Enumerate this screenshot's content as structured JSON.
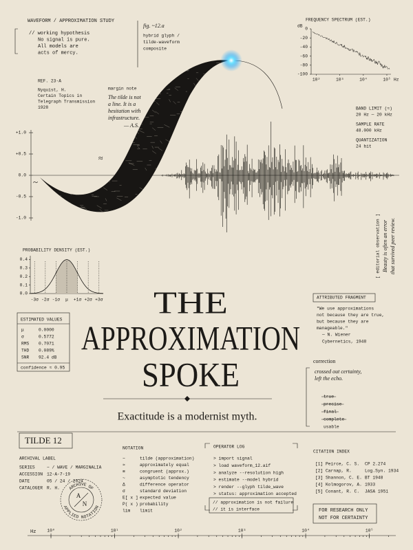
{
  "header": {
    "label": "WAVEFORM / APPROXIMATION STUDY",
    "hypothesis": [
      "// working hypothesis",
      "No signal is pure.",
      "All models are",
      "acts of mercy."
    ]
  },
  "reference": {
    "id": "REF.  23-A",
    "lines": [
      "Nyquist, H.",
      "Certain Topics in",
      "Telegraph Transmission",
      "1928"
    ]
  },
  "figure": {
    "caption": "fig. ~12.a",
    "lines": [
      "hybrid glyph /",
      "tilde-waveform",
      "composite"
    ]
  },
  "margin_note": {
    "label": "margin note",
    "lines": [
      "The tilde is not",
      "a line. It is a",
      "hesitation with",
      "infrastructure."
    ],
    "author": "— A.S."
  },
  "spectrum": {
    "title": "FREQUENCY SPECTRUM (EST.)",
    "y_label": "dB",
    "x_unit": "Hz",
    "ylim": [
      -100,
      0
    ],
    "yticks": [
      0,
      -20,
      -40,
      -60,
      -80,
      -100
    ],
    "xlim": [
      60,
      150000
    ],
    "xticks": [
      {
        "value": 100,
        "label": "10²"
      },
      {
        "value": 1000,
        "label": "10³"
      },
      {
        "value": 10000,
        "label": "10⁴"
      },
      {
        "value": 100000,
        "label": "10⁵"
      }
    ]
  },
  "specs": [
    {
      "label": "BAND LIMIT (≈)",
      "value": "20 Hz — 20 kHz"
    },
    {
      "label": "SAMPLE RATE",
      "value": "48.000 kHz"
    },
    {
      "label": "QUANTIZATION",
      "value": "24 bit"
    }
  ],
  "waveform": {
    "ylim": [
      -1,
      1
    ],
    "yticks": [
      {
        "value": 1,
        "label": "+1.0"
      },
      {
        "value": 0.5,
        "label": "+0.5"
      },
      {
        "value": 0,
        "label": "0.0"
      },
      {
        "value": -0.5,
        "label": "-0.5"
      },
      {
        "value": -1,
        "label": "-1.0"
      }
    ],
    "glyphs": [
      "~",
      "≈"
    ]
  },
  "density": {
    "title": "PROBABILITY DENSITY (EST.)",
    "ylim": [
      0,
      0.42
    ],
    "yticks": [
      0.4,
      0.3,
      0.2,
      0.1,
      {
        "value": 0,
        "label": "0.0"
      }
    ],
    "xlim": [
      -3.4,
      3.4
    ],
    "xticks": [
      {
        "value": -3,
        "label": "-3σ"
      },
      {
        "value": -2,
        "label": "-2σ"
      },
      {
        "value": -1,
        "label": "-1σ"
      },
      {
        "value": 0,
        "label": "μ"
      },
      {
        "value": 1,
        "label": "+1σ"
      },
      {
        "value": 2,
        "label": "+2σ"
      },
      {
        "value": 3,
        "label": "+3σ"
      }
    ]
  },
  "estimates": {
    "title": "ESTIMATED VALUES",
    "rows": [
      [
        "μ",
        "0.0000"
      ],
      [
        "σ",
        "0.5772"
      ],
      [
        "RMS",
        "0.7071"
      ],
      [
        "THD",
        "0.089%"
      ],
      [
        "SNR",
        "92.4 dB"
      ]
    ],
    "note": "confidence ≈ 0.95"
  },
  "title": [
    "THE",
    "APPROXIMATION",
    "SPOKE"
  ],
  "subtitle": "Exactitude is a modernist myth.",
  "observation": {
    "label": "[ editorial observation ]",
    "lines": [
      "Beauty is often an error",
      "that survived peer review."
    ]
  },
  "fragment": {
    "label": "ATTRIBUTED FRAGMENT",
    "quote": [
      "\"We use approximations",
      "not because they are true,",
      "but because they are",
      "manageable.\""
    ],
    "author": "— N. Wiener",
    "source": "Cybernetics, 1948"
  },
  "correction": {
    "label": "correction",
    "lines": [
      "crossed out certainty,",
      "left the echo."
    ],
    "struck": [
      "true",
      "precise",
      "final",
      "complete"
    ],
    "kept": "usable"
  },
  "archive": {
    "badge": "TILDE 12",
    "label": "ARCHIVAL LABEL",
    "rows": [
      [
        "SERIES",
        "~ / WAVE / MARGINALIA"
      ],
      [
        "ACCESSION",
        "12-A-7-19"
      ],
      [
        "DATE",
        "05 / 24 / 2024"
      ],
      [
        "CATALOGER",
        "R. H."
      ]
    ],
    "stamp": [
      "ARCHIVE OF",
      "APPLIED NOTATION",
      "A",
      "N"
    ]
  },
  "notation": {
    "title": "NOTATION",
    "rows": [
      [
        "~",
        "tilde (approximation)"
      ],
      [
        "≈",
        "approximately equal"
      ],
      [
        "≅",
        "congruent (approx.)"
      ],
      [
        "~",
        "asymptotic tendency"
      ],
      [
        "Δ",
        "difference operator"
      ],
      [
        "σ",
        "standard deviation"
      ],
      [
        "E[ x ]",
        "expected value"
      ],
      [
        "P( x )",
        "probability"
      ],
      [
        "lim",
        "limit"
      ]
    ]
  },
  "log": {
    "title": "OPERATOR LOG",
    "commands": [
      "> import signal",
      "> load waveform_12.aif",
      "> analyze --resolution high",
      "> estimate --model hybrid",
      "> render --glyph tilde_wave",
      "> status: approximation accepted"
    ],
    "comments": [
      "// approximation is not failure",
      "// it is interface"
    ]
  },
  "citations": {
    "title": "CITATION INDEX",
    "rows": [
      [
        "[1]",
        "Peirce, C. S.",
        "CP 2.274"
      ],
      [
        "[2]",
        "Carnap, R.",
        "Log.Syn. 1934"
      ],
      [
        "[3]",
        "Shannon, C. E.",
        "BT 1948"
      ],
      [
        "[4]",
        "Kolmogorov, A.",
        "1933"
      ],
      [
        "[5]",
        "Conant, R. C.",
        "JASA 1951"
      ]
    ]
  },
  "disclaimer": [
    "FOR RESEARCH ONLY",
    "NOT FOR CERTAINTY"
  ],
  "frequency_axis": {
    "unit": "Hz",
    "xlim": [
      0.55,
      260000
    ],
    "xticks": [
      {
        "value": 1,
        "label": "10⁰"
      },
      {
        "value": 10,
        "label": "10¹"
      },
      {
        "value": 100,
        "label": "10²"
      },
      {
        "value": 1000,
        "label": "10³"
      },
      {
        "value": 10000,
        "label": "10⁴"
      },
      {
        "value": 100000,
        "label": "10⁵"
      }
    ]
  }
}
